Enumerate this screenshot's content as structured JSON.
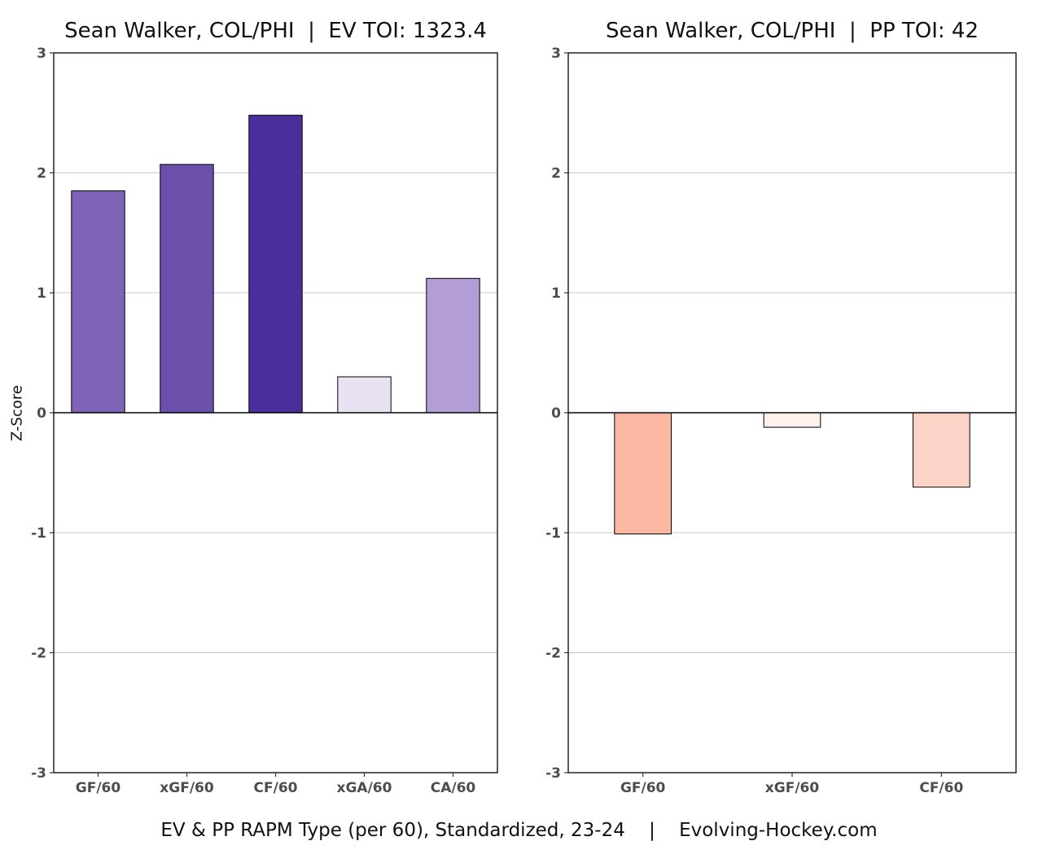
{
  "chart_data": [
    {
      "type": "bar",
      "title": "Sean Walker, COL/PHI  |  EV TOI: 1323.4",
      "ylabel": "Z-Score",
      "xlabel": "",
      "categories": [
        "GF/60",
        "xGF/60",
        "CF/60",
        "xGA/60",
        "CA/60"
      ],
      "values": [
        1.85,
        2.07,
        2.48,
        0.3,
        1.12
      ],
      "colors": [
        "#7f63b8",
        "#6b4fab",
        "#4a2e9c",
        "#e9e2f2",
        "#b29ed4"
      ],
      "ylim": [
        -3,
        3
      ],
      "yticks": [
        -3,
        -2,
        -1,
        0,
        1,
        2,
        3
      ],
      "grid": true
    },
    {
      "type": "bar",
      "title": "Sean Walker, COL/PHI  |  PP TOI: 42",
      "ylabel": "",
      "xlabel": "",
      "categories": [
        "GF/60",
        "xGF/60",
        "CF/60"
      ],
      "values": [
        -1.01,
        -0.12,
        -0.62
      ],
      "colors": [
        "#fbb9a4",
        "#fff1eb",
        "#fdd3c7"
      ],
      "ylim": [
        -3,
        3
      ],
      "yticks": [
        -3,
        -2,
        -1,
        0,
        1,
        2,
        3
      ],
      "grid": true
    }
  ],
  "caption": "EV & PP RAPM Type (per 60), Standardized, 23-24    |    Evolving-Hockey.com"
}
